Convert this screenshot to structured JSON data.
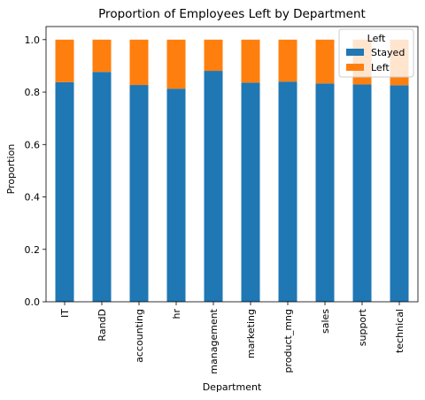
{
  "chart_data": {
    "type": "bar",
    "stacked": true,
    "title": "Proportion of Employees Left by Department",
    "xlabel": "Department",
    "ylabel": "Proportion",
    "ylim": [
      0,
      1.05
    ],
    "yticks": [
      "0.0",
      "0.2",
      "0.4",
      "0.6",
      "0.8",
      "1.0"
    ],
    "categories": [
      "IT",
      "RandD",
      "accounting",
      "hr",
      "management",
      "marketing",
      "product_mng",
      "sales",
      "support",
      "technical"
    ],
    "series": [
      {
        "name": "Stayed",
        "color": "#1f77b4",
        "values": [
          0.838,
          0.877,
          0.827,
          0.813,
          0.881,
          0.836,
          0.84,
          0.833,
          0.829,
          0.826
        ]
      },
      {
        "name": "Left",
        "color": "#ff7f0e",
        "values": [
          0.162,
          0.123,
          0.173,
          0.187,
          0.119,
          0.164,
          0.16,
          0.167,
          0.171,
          0.174
        ]
      }
    ],
    "legend": {
      "title": "Left",
      "position": "top-right"
    },
    "grid": false
  }
}
